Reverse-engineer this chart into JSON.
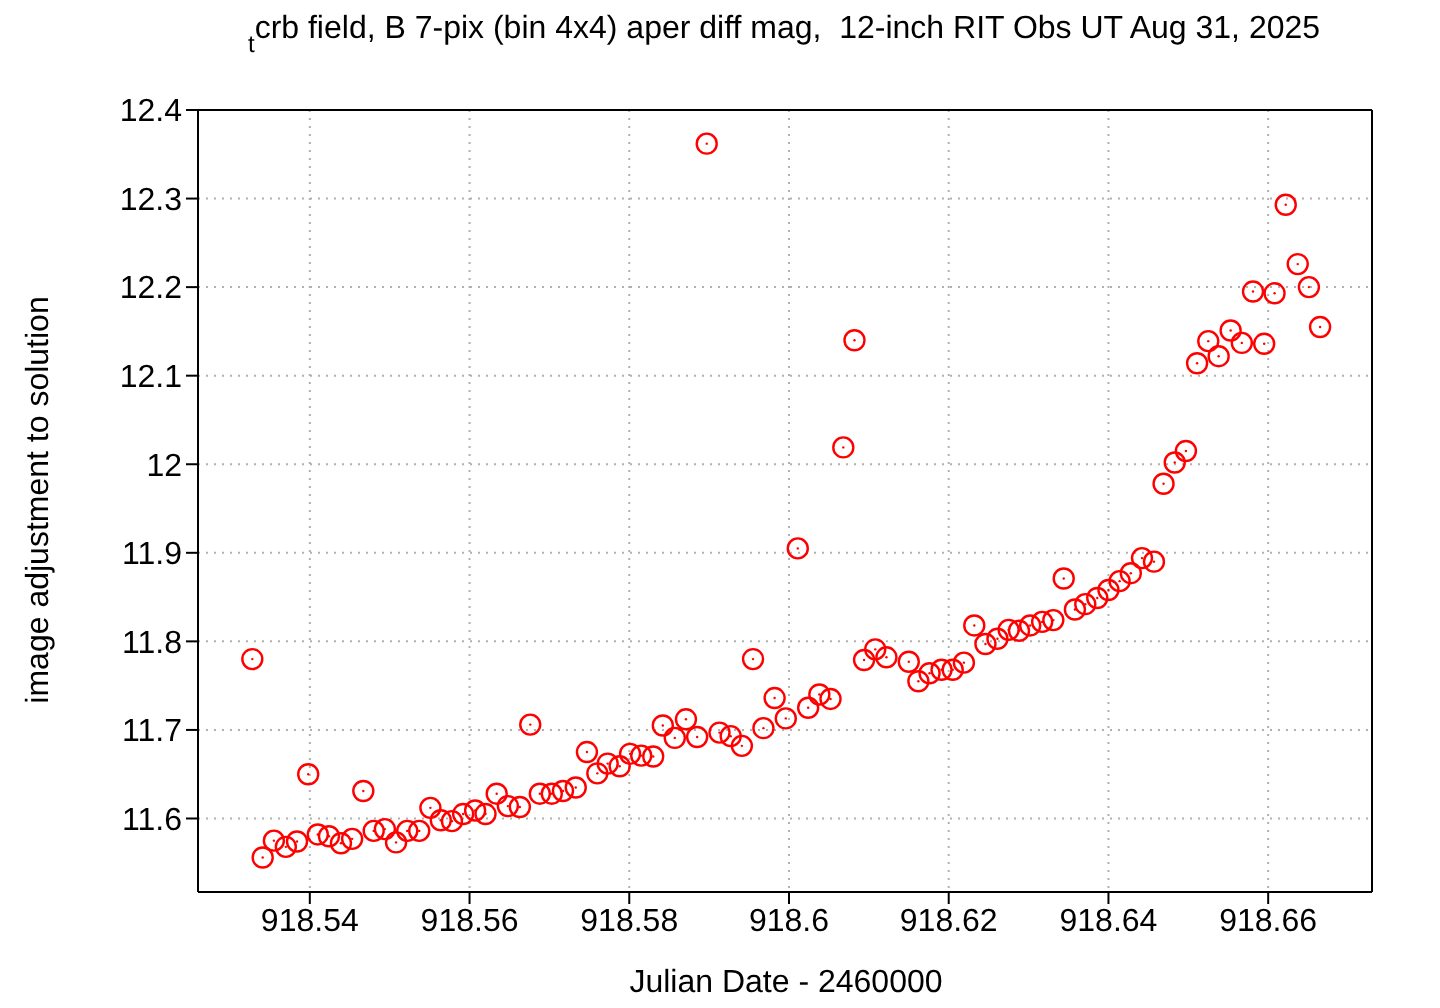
{
  "chart_data": {
    "type": "scatter",
    "title": "$_{t}$crb field, B 7-pix (bin 4x4) aper diff mag,  12-inch RIT Obs UT Aug 31, 2025",
    "xlabel": "Julian Date - 2460000",
    "ylabel": "image adjustment to solution",
    "xlim": [
      918.526,
      918.673
    ],
    "xticks": [
      918.54,
      918.56,
      918.58,
      918.6,
      918.62,
      918.64,
      918.66
    ],
    "ylim": [
      11.517,
      12.4
    ],
    "yticks": [
      11.6,
      11.7,
      11.8,
      11.9,
      12,
      12.1,
      12.2,
      12.3,
      12.4
    ],
    "grid": true,
    "marker": "circle",
    "legend": false,
    "series": [
      {
        "color": "#ff0000",
        "x": [
          918.5328,
          918.5341,
          918.5355,
          918.537,
          918.5384,
          918.5398,
          918.541,
          918.5424,
          918.5439,
          918.5453,
          918.5467,
          918.548,
          918.5494,
          918.5508,
          918.5522,
          918.5537,
          918.5551,
          918.5564,
          918.5578,
          918.5592,
          918.5607,
          918.562,
          918.5634,
          918.5648,
          918.5663,
          918.5676,
          918.5688,
          918.5703,
          918.5717,
          918.5733,
          918.5747,
          918.576,
          918.5773,
          918.5788,
          918.5801,
          918.5815,
          918.583,
          918.5842,
          918.5857,
          918.5871,
          918.5885,
          918.5897,
          918.5913,
          918.5927,
          918.5941,
          918.5955,
          918.5968,
          918.5982,
          918.5996,
          918.6011,
          918.6024,
          918.6038,
          918.6052,
          918.6068,
          918.6082,
          918.6094,
          918.6108,
          918.6122,
          918.615,
          918.6162,
          918.6176,
          918.6191,
          918.6205,
          918.6219,
          918.6232,
          918.6246,
          918.6261,
          918.6275,
          918.6288,
          918.6302,
          918.6317,
          918.6331,
          918.6344,
          918.6358,
          918.6371,
          918.6386,
          918.64,
          918.6414,
          918.6428,
          918.6442,
          918.6457,
          918.6469,
          918.6483,
          918.6497,
          918.6511,
          918.6525,
          918.6538,
          918.6553,
          918.6567,
          918.6581,
          918.6595,
          918.6608,
          918.6622,
          918.6637,
          918.6651,
          918.6665
        ],
        "values": [
          11.78,
          11.556,
          11.575,
          11.568,
          11.574,
          11.65,
          11.582,
          11.58,
          11.572,
          11.577,
          11.631,
          11.586,
          11.588,
          11.573,
          11.586,
          11.586,
          11.612,
          11.598,
          11.597,
          11.605,
          11.609,
          11.605,
          11.628,
          11.614,
          11.613,
          11.706,
          11.628,
          11.628,
          11.631,
          11.635,
          11.675,
          11.651,
          11.662,
          11.659,
          11.673,
          11.671,
          11.67,
          11.705,
          11.691,
          11.712,
          11.692,
          12.362,
          11.697,
          11.693,
          11.682,
          11.78,
          11.702,
          11.736,
          11.713,
          11.905,
          11.725,
          11.74,
          11.735,
          12.019,
          12.14,
          11.779,
          11.791,
          11.782,
          11.777,
          11.755,
          11.764,
          11.768,
          11.768,
          11.776,
          11.818,
          11.797,
          11.803,
          11.813,
          11.812,
          11.818,
          11.822,
          11.824,
          11.871,
          11.836,
          11.842,
          11.849,
          11.858,
          11.868,
          11.877,
          11.894,
          11.89,
          11.978,
          12.002,
          12.015,
          12.114,
          12.139,
          12.122,
          12.151,
          12.137,
          12.195,
          12.136,
          12.193,
          12.293,
          12.226,
          12.2,
          12.155
        ]
      }
    ]
  }
}
